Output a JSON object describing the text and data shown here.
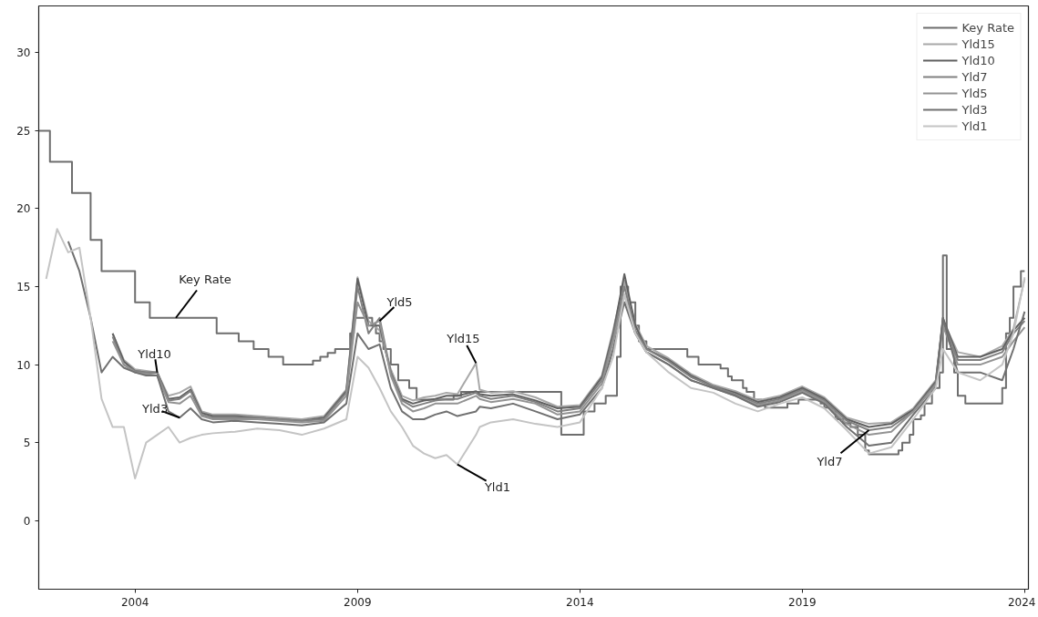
{
  "chart_data": {
    "type": "line",
    "x": [
      "2002-01",
      "2002-04",
      "2002-07",
      "2002-10",
      "2003-01",
      "2003-04",
      "2003-07",
      "2003-10",
      "2004-01",
      "2004-04",
      "2004-07",
      "2004-10",
      "2005-01",
      "2005-04",
      "2005-07",
      "2005-10",
      "2006-04",
      "2006-10",
      "2007-04",
      "2007-10",
      "2008-04",
      "2008-10",
      "2009-01",
      "2009-04",
      "2009-07",
      "2009-10",
      "2010-01",
      "2010-04",
      "2010-07",
      "2010-10",
      "2011-01",
      "2011-04",
      "2011-09",
      "2011-10",
      "2012-01",
      "2012-07",
      "2013-01",
      "2013-07",
      "2014-01",
      "2014-07",
      "2014-10",
      "2015-01",
      "2015-04",
      "2015-07",
      "2016-01",
      "2016-07",
      "2017-01",
      "2017-07",
      "2018-01",
      "2018-07",
      "2019-01",
      "2019-07",
      "2020-01",
      "2020-07",
      "2021-01",
      "2021-07",
      "2022-01",
      "2022-03",
      "2022-07",
      "2023-01",
      "2023-07",
      "2023-10",
      "2024-01"
    ],
    "series": [
      {
        "name": "Key Rate",
        "color": "#6e6e6e",
        "type": "step",
        "x": [
          "2001-11",
          "2002-02",
          "2002-08",
          "2003-01",
          "2003-04",
          "2004-01",
          "2004-05",
          "2005-11",
          "2006-05",
          "2006-09",
          "2007-01",
          "2007-05",
          "2008-01",
          "2008-03",
          "2008-05",
          "2008-07",
          "2008-11",
          "2008-12",
          "2009-05",
          "2009-06",
          "2009-07",
          "2009-08",
          "2009-10",
          "2009-12",
          "2010-03",
          "2010-05",
          "2011-03",
          "2011-05",
          "2013-08",
          "2014-02",
          "2014-05",
          "2014-08",
          "2014-11",
          "2014-12",
          "2015-02",
          "2015-04",
          "2015-05",
          "2015-07",
          "2016-06",
          "2016-09",
          "2017-03",
          "2017-05",
          "2017-06",
          "2017-09",
          "2017-10",
          "2017-12",
          "2018-02",
          "2018-03",
          "2018-09",
          "2018-12",
          "2019-06",
          "2019-07",
          "2019-09",
          "2019-10",
          "2019-12",
          "2020-02",
          "2020-04",
          "2020-06",
          "2020-07",
          "2021-03",
          "2021-04",
          "2021-06",
          "2021-07",
          "2021-09",
          "2021-10",
          "2021-12",
          "2022-02",
          "2022-03",
          "2022-04",
          "2022-06",
          "2022-07",
          "2022-09",
          "2023-07",
          "2023-08",
          "2023-09",
          "2023-10",
          "2023-12",
          "2024-01"
        ],
        "values": [
          25,
          23,
          21,
          18,
          16,
          14,
          13,
          12,
          11.5,
          11,
          10.5,
          10,
          10.25,
          10.5,
          10.75,
          11,
          12,
          13,
          12.5,
          12,
          11.5,
          11,
          10,
          9,
          8.5,
          7.75,
          8,
          8.25,
          5.5,
          7,
          7.5,
          8,
          10.5,
          15,
          14,
          12.5,
          11.5,
          11,
          10.5,
          10,
          9.75,
          9.25,
          9,
          8.5,
          8.25,
          7.75,
          7.5,
          7.25,
          7.5,
          7.75,
          7.5,
          7.25,
          7,
          6.5,
          6.25,
          6,
          5.5,
          4.5,
          4.25,
          4.5,
          5,
          5.5,
          6.5,
          6.75,
          7.5,
          8.5,
          9.5,
          17,
          11,
          9.5,
          8,
          7.5,
          8.5,
          12,
          13,
          15,
          16,
          16
        ]
      },
      {
        "name": "Yld15",
        "color": "#a8a8a8",
        "values": [
          null,
          null,
          null,
          null,
          null,
          null,
          12,
          10.3,
          9.7,
          9.6,
          9.5,
          8,
          8.2,
          8.6,
          7,
          6.8,
          6.8,
          6.7,
          6.6,
          6.5,
          6.7,
          8.4,
          15.6,
          12.8,
          12.2,
          9.7,
          8,
          7.7,
          7.9,
          8,
          8.2,
          8.1,
          10.1,
          8.4,
          8.2,
          8.3,
          7.9,
          7.3,
          7.4,
          9.3,
          12.2,
          15.4,
          12.6,
          11.2,
          10.4,
          9.4,
          8.7,
          8.3,
          7.7,
          8,
          8.6,
          7.9,
          6.6,
          6.2,
          6.3,
          7.2,
          9,
          12.8,
          10.8,
          10.5,
          11.2,
          12.3,
          15.5
        ]
      },
      {
        "name": "Yld10",
        "color": "#606060",
        "values": [
          null,
          null,
          null,
          null,
          null,
          null,
          12,
          10.2,
          9.6,
          9.5,
          9.5,
          7.8,
          7.9,
          8.4,
          6.9,
          6.7,
          6.7,
          6.6,
          6.5,
          6.4,
          6.6,
          8.3,
          15.5,
          12.5,
          12.5,
          9.5,
          7.8,
          7.5,
          7.7,
          7.8,
          8,
          8,
          8.3,
          8.1,
          8,
          8.1,
          7.7,
          7.2,
          7.3,
          9.2,
          12,
          15.8,
          12.5,
          11,
          10.3,
          9.3,
          8.6,
          8.2,
          7.6,
          7.9,
          8.5,
          7.8,
          6.5,
          6,
          6.2,
          7.1,
          8.9,
          13,
          10.5,
          10.5,
          11,
          12.2,
          13
        ]
      },
      {
        "name": "Yld7",
        "color": "#808080",
        "values": [
          null,
          null,
          null,
          null,
          null,
          null,
          11.8,
          10,
          9.6,
          9.5,
          9.5,
          7.7,
          7.8,
          8.3,
          6.8,
          6.6,
          6.6,
          6.6,
          6.5,
          6.4,
          6.5,
          8.2,
          15,
          12,
          13,
          9.5,
          7.7,
          7.3,
          7.5,
          7.7,
          7.8,
          7.8,
          8.2,
          8,
          7.8,
          8,
          7.6,
          7,
          7.2,
          9,
          11.8,
          15,
          12.2,
          11,
          10.2,
          9.2,
          8.6,
          8.1,
          7.5,
          7.8,
          8.4,
          7.7,
          6.4,
          5.8,
          6,
          7,
          8.8,
          12.8,
          10.3,
          10.3,
          10.8,
          12,
          12.8
        ]
      },
      {
        "name": "Yld5",
        "color": "#939393",
        "values": [
          null,
          null,
          null,
          null,
          null,
          null,
          11.5,
          10,
          9.5,
          9.4,
          9.3,
          7.6,
          7.5,
          8,
          6.7,
          6.5,
          6.5,
          6.5,
          6.4,
          6.3,
          6.4,
          8,
          14,
          12.5,
          12.8,
          9.3,
          7.5,
          7,
          7.2,
          7.5,
          7.5,
          7.5,
          8,
          7.8,
          7.6,
          7.8,
          7.5,
          6.8,
          7,
          8.8,
          11.5,
          14.5,
          12,
          10.8,
          10,
          9,
          8.5,
          8,
          7.4,
          7.7,
          8.3,
          7.6,
          6.2,
          5.5,
          5.7,
          7,
          8.7,
          12.5,
          10,
          10,
          10.5,
          11.5,
          12.4
        ]
      },
      {
        "name": "Yld3",
        "color": "#707070",
        "values": [
          null,
          null,
          17.9,
          16,
          13,
          9.5,
          10.5,
          9.8,
          9.5,
          9.3,
          9.3,
          7,
          6.6,
          7.2,
          6.5,
          6.3,
          6.4,
          6.3,
          6.2,
          6.1,
          6.3,
          7.5,
          12,
          11,
          11.3,
          8.5,
          7,
          6.5,
          6.5,
          6.8,
          7,
          6.7,
          7,
          7.3,
          7.2,
          7.5,
          7,
          6.5,
          6.8,
          8.5,
          11,
          14,
          12,
          10.8,
          10,
          9,
          8.5,
          8,
          7.3,
          7.6,
          8.2,
          7.5,
          6,
          4.8,
          5,
          6.8,
          8.5,
          13,
          9.5,
          9.5,
          9,
          11,
          13.4
        ]
      },
      {
        "name": "Yld1",
        "color": "#c4c4c4",
        "values": [
          15.5,
          18.7,
          17.2,
          17.5,
          13,
          7.8,
          6,
          6,
          2.7,
          5,
          5.5,
          6,
          5,
          5.3,
          5.5,
          5.6,
          5.7,
          5.9,
          5.8,
          5.5,
          5.9,
          6.5,
          10.5,
          9.8,
          8.5,
          7,
          6,
          4.8,
          4.3,
          4,
          4.2,
          3.6,
          5.5,
          6,
          6.3,
          6.5,
          6.2,
          6,
          6.3,
          8.5,
          10.5,
          14.5,
          12,
          10.8,
          9.5,
          8.5,
          8.2,
          7.5,
          7,
          7.5,
          7.9,
          7.2,
          5.8,
          4.3,
          4.7,
          6.5,
          8.5,
          11,
          9.5,
          9,
          10,
          12,
          15.6
        ]
      }
    ],
    "annotations": [
      {
        "text": "Key Rate",
        "x": "2004-12",
        "y": 13
      },
      {
        "text": "Yld10",
        "x": "2004-07",
        "y": 9.5
      },
      {
        "text": "Yld3",
        "x": "2005-01",
        "y": 6.6
      },
      {
        "text": "Yld5",
        "x": "2009-07",
        "y": 12.8
      },
      {
        "text": "Yld15",
        "x": "2011-09",
        "y": 10.1
      },
      {
        "text": "Yld1",
        "x": "2011-04",
        "y": 3.6
      },
      {
        "text": "Yld7",
        "x": "2020-07",
        "y": 5.8
      }
    ],
    "xlim": [
      "2001-11",
      "2024-02"
    ],
    "xticks": [
      "2004",
      "2009",
      "2014",
      "2019",
      "2024"
    ],
    "ylim": [
      -4.4,
      33
    ],
    "yticks": [
      0,
      5,
      10,
      15,
      20,
      25,
      30
    ],
    "grid": false,
    "legend": "top right",
    "line_style": "solid",
    "marker": "none"
  }
}
